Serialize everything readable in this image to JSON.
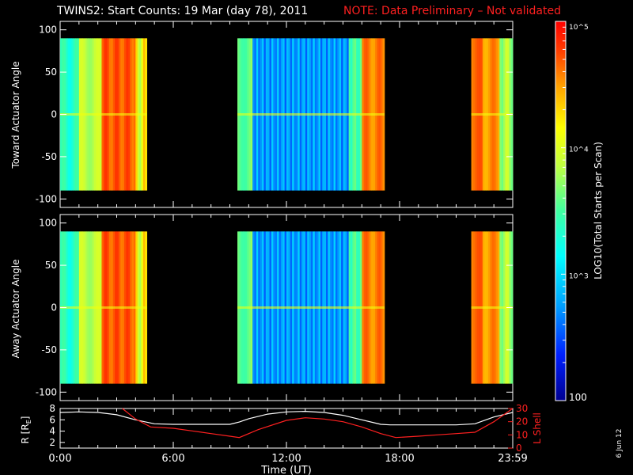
{
  "title": {
    "main": "TWINS2: Start Counts: 19 Mar (day  78), 2011",
    "note": "NOTE: Data Preliminary – Not validated"
  },
  "side_date": "6 Jun 12",
  "colors": {
    "background": "#000000",
    "axis": "#ffffff",
    "note": "#ff2020",
    "lshell": "#ff2020",
    "radius": "#ffffff"
  },
  "chart_data": [
    {
      "type": "heatmap",
      "panel": "toward",
      "ylabel": "Toward Actuator Angle",
      "ylim": [
        -110,
        110
      ],
      "yticks": [
        100,
        50,
        0,
        -50,
        -100
      ],
      "y_data_range": [
        -90,
        90
      ],
      "xlim_hours": [
        0,
        24
      ],
      "data_intervals_hours": [
        [
          0.0,
          4.6
        ],
        [
          9.4,
          17.2
        ],
        [
          21.8,
          24.0
        ]
      ],
      "colorbar": {
        "label": "LOG10(Total Starts per Scan)",
        "scale": "log",
        "range": [
          100,
          100000
        ],
        "tick_labels": [
          "100",
          "10^3",
          "10^4",
          "10^5"
        ],
        "colors": [
          "#000090",
          "#0020ff",
          "#00a0ff",
          "#00ffff",
          "#40ffa0",
          "#c0ff40",
          "#ffff00",
          "#ffa000",
          "#ff4000",
          "#ff0000"
        ]
      }
    },
    {
      "type": "heatmap",
      "panel": "away",
      "ylabel": "Away Actuator Angle",
      "ylim": [
        -110,
        110
      ],
      "yticks": [
        100,
        50,
        0,
        -50,
        -100
      ],
      "y_data_range": [
        -90,
        90
      ],
      "xlim_hours": [
        0,
        24
      ],
      "data_intervals_hours": [
        [
          0.0,
          4.6
        ],
        [
          9.4,
          17.2
        ],
        [
          21.8,
          24.0
        ]
      ]
    },
    {
      "type": "line",
      "panel": "orbit",
      "xlabel": "Time (UT)",
      "xtick_labels": [
        "0:00",
        "6:00",
        "12:00",
        "18:00",
        "23:59"
      ],
      "xtick_hours": [
        0,
        6,
        12,
        18,
        24
      ],
      "left_axis": {
        "label": "R [RE]",
        "label_main": "R [R",
        "label_sub": "E",
        "label_close": "]",
        "ylim": [
          1,
          8
        ],
        "ticks": [
          8,
          6,
          4,
          2
        ]
      },
      "right_axis": {
        "label": "L Shell",
        "ylim": [
          0,
          30
        ],
        "ticks": [
          30,
          20,
          10,
          0
        ]
      },
      "series": [
        {
          "name": "R [RE]",
          "axis": "left",
          "x": [
            0,
            1,
            2,
            3,
            4,
            5,
            6,
            7,
            8,
            9,
            9.5,
            10,
            11,
            12,
            13,
            14,
            15,
            16,
            17,
            17.5,
            18,
            19,
            20,
            21,
            22,
            23,
            24
          ],
          "y": [
            7.3,
            7.4,
            7.3,
            6.9,
            6.0,
            5.3,
            5.2,
            5.2,
            5.2,
            5.2,
            5.6,
            6.2,
            7.0,
            7.4,
            7.5,
            7.3,
            6.8,
            6.0,
            5.2,
            5.1,
            5.1,
            5.1,
            5.1,
            5.1,
            5.3,
            6.5,
            7.3
          ]
        },
        {
          "name": "L Shell",
          "axis": "right",
          "x": [
            3.3,
            4.0,
            4.8,
            6.0,
            7.0,
            8.0,
            9.0,
            9.5,
            10.5,
            12.0,
            13.0,
            14.0,
            15.0,
            16.0,
            17.0,
            17.8,
            19.0,
            20.0,
            21.0,
            22.0,
            23.0,
            24.0
          ],
          "y": [
            30,
            22,
            16,
            15,
            13,
            11,
            9,
            8,
            14,
            21,
            23,
            22,
            20,
            16,
            11,
            8,
            9,
            10,
            11,
            12,
            20,
            30
          ]
        }
      ]
    }
  ]
}
